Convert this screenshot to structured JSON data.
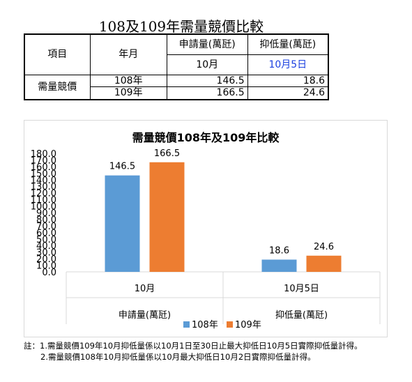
{
  "table": {
    "title": "108及109年需量競價比較",
    "col_item": "項目",
    "col_month": "年月",
    "col_apply": "申請量(萬瓩)",
    "col_curtail": "抑低量(萬瓩)",
    "apply_period": "10月",
    "curtail_period": "10月5日",
    "row_label": "需量競價",
    "rows": [
      {
        "year": "108年",
        "apply": "146.5",
        "curtail": "18.6"
      },
      {
        "year": "109年",
        "apply": "166.5",
        "curtail": "24.6"
      }
    ]
  },
  "chart_data": {
    "type": "bar",
    "title": "需量競價108年及109年比較",
    "categories": [
      "10月",
      "10月5日"
    ],
    "groups": [
      "申請量(萬瓩)",
      "抑低量(萬瓩)"
    ],
    "series": [
      {
        "name": "108年",
        "values": [
          146.5,
          18.6
        ],
        "color": "#5b9bd5"
      },
      {
        "name": "109年",
        "values": [
          166.5,
          24.6
        ],
        "color": "#ed7d31"
      }
    ],
    "ylim": [
      0,
      180
    ],
    "ytick_step": 10,
    "grid": false,
    "legend_position": "bottom"
  },
  "notes": [
    "註：1.需量競價109年10月抑低量係以10月1日至30日止最大抑低日10月5日實際抑低量計得。",
    "2.需量競價108年10月抑低量係以10月最大抑低日10月2日實際抑低量計得。"
  ]
}
